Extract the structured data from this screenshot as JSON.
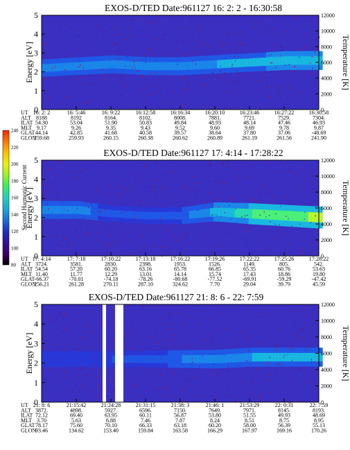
{
  "colorbar": {
    "label": "Second Harmonic Current",
    "ticks": [
      "80",
      "100",
      "120",
      "140",
      "160",
      "180",
      "200",
      "220",
      "240"
    ],
    "colors": [
      "#000000",
      "#3a006a",
      "#3010a0",
      "#2030c8",
      "#1a6ee0",
      "#19a8d8",
      "#26d0b8",
      "#33ee60",
      "#9cf22a",
      "#e8f20c",
      "#ffc000",
      "#ff7800",
      "#ff2200"
    ]
  },
  "chart_data": [
    {
      "type": "heatmap",
      "title": "EXOS-D/TED   Date:961127  16: 2: 2 - 16:30:58",
      "ylabel": "Energy [eV]",
      "ylabel_right": "Temperature [K]",
      "ylim": [
        0,
        5
      ],
      "y_ticks": [
        "0",
        "1",
        "2",
        "3",
        "4",
        "5"
      ],
      "y2lim": [
        0,
        12000
      ],
      "y2_ticks": [
        "0",
        "2000",
        "4000",
        "6000",
        "8000",
        "10000",
        "12000"
      ],
      "ephemeris_labels": [
        "UT",
        "ALT",
        "ILAT",
        "MLT",
        "GLAT",
        "GLON"
      ],
      "ephemeris": [
        [
          "16: 2: 2",
          "8188",
          "54.30",
          "9.17",
          "44.14",
          "259.68"
        ],
        [
          "16: 5:46",
          "8192",
          "53.04",
          "9.26",
          "42.85",
          "259.93"
        ],
        [
          "16: 9:22",
          "8164.",
          "51.90",
          "9.35",
          "41.68",
          "260.15"
        ],
        [
          "16:12:58",
          "8102.",
          "50.83",
          "9.43",
          "40.58",
          "260.38"
        ],
        [
          "16:16:34",
          "8008.",
          "49.84",
          "9.52",
          "39.57",
          "260.62"
        ],
        [
          "16:20:10",
          "7881.",
          "48.93",
          "9.60",
          "38.64",
          "260.89"
        ],
        [
          "16:23:46",
          "7721.",
          "48.14",
          "9.69",
          "37.80",
          "261.19"
        ],
        [
          "16:27:22",
          "7529.",
          "47.46",
          "9.78",
          "37.06",
          "261.56"
        ],
        [
          "16:30:58",
          "7304.",
          "46.93",
          "9.87",
          "-48.69",
          "241.90"
        ]
      ],
      "band": {
        "center_ev": [
          2.2,
          2.3,
          2.4,
          2.3,
          2.3,
          2.4,
          2.5,
          2.6,
          2.6
        ],
        "intensity": [
          0.45,
          0.45,
          0.5,
          0.5,
          0.5,
          0.55,
          0.55,
          0.6,
          0.6
        ]
      }
    },
    {
      "type": "heatmap",
      "title": "EXOS-D/TED   Date:961127  17: 4:14 - 17:28:22",
      "ylabel": "Energy [eV]",
      "ylabel_right": "Temperature [K]",
      "ylim": [
        0,
        5
      ],
      "y_ticks": [
        "0",
        "1",
        "2",
        "3",
        "4",
        "5"
      ],
      "y2lim": [
        0,
        12000
      ],
      "y2_ticks": [
        "0",
        "2000",
        "4000",
        "6000",
        "8000",
        "10000",
        "12000"
      ],
      "ephemeris_labels": [
        "UT",
        "ALT",
        "ILAT",
        "MLT",
        "GLAT",
        "GLON"
      ],
      "ephemeris": [
        [
          "17: 4:14",
          "3724.",
          "54.54",
          "11.40",
          "-66.37",
          "256.21"
        ],
        [
          "17: 7:18",
          "3581.",
          "57.20",
          "11.77",
          "-70.01",
          "261.28"
        ],
        [
          "17:10:22",
          "2830.",
          "60.20",
          "12.29",
          "-74.18",
          "270.11"
        ],
        [
          "17:13:18",
          "2398.",
          "63.16",
          "13.01",
          "-78.26",
          "287.10"
        ],
        [
          "17:16:22",
          "1953.",
          "65.78",
          "14.14",
          "-80.68",
          "324.62"
        ],
        [
          "17:19:26",
          "1526.",
          "66.85",
          "15.74",
          "-77.52",
          "7.70"
        ],
        [
          "17:22:22",
          "1149.",
          "65.35",
          "17.43",
          "-69.91",
          "29.04"
        ],
        [
          "17:25:26",
          "805.",
          "60.76",
          "18.86",
          "-59.29",
          "39.79"
        ],
        [
          "17:28:22",
          "542.",
          "53.63",
          "19.80",
          "-47.42",
          "45.59"
        ]
      ],
      "band": {
        "center_ev": [
          2.4,
          2.4,
          2.2,
          2.1,
          2.1,
          2.3,
          2.2,
          2.1,
          2.0
        ],
        "intensity": [
          0.5,
          0.45,
          0.3,
          0.3,
          0.35,
          0.6,
          0.8,
          0.85,
          0.9
        ]
      }
    },
    {
      "type": "heatmap",
      "title": "EXOS-D/TED   Date:961127  21: 8: 6 - 22: 7:59",
      "ylabel": "Energy [eV]",
      "ylabel_right": "Temperature [K]",
      "ylim": [
        0,
        5
      ],
      "y_ticks": [
        "0",
        "1",
        "2",
        "3",
        "4",
        "5"
      ],
      "y2lim": [
        0,
        12000
      ],
      "y2_ticks": [
        "0",
        "2000",
        "4000",
        "6000",
        "8000",
        "10000",
        "12000"
      ],
      "ephemeris_labels": [
        "UT",
        "ALT",
        "ILAT",
        "MLT",
        "GLAT",
        "GLON"
      ],
      "ephemeris": [
        [
          "21: 8: 6",
          "3872.",
          "72.12",
          "3.70",
          "78.17",
          "93.46"
        ],
        [
          "21:15:42",
          "4898.",
          "69.40",
          "5.63",
          "75.60",
          "134.62"
        ],
        [
          "21:24:28",
          "5927.",
          "63.95",
          "6.88",
          "70.10",
          "153.40"
        ],
        [
          "21:31:15",
          "6596.",
          "60.11",
          "7.46",
          "66.33",
          "159.84"
        ],
        [
          "21:38: 3",
          "7150.",
          "56.87",
          "7.87",
          "63.18",
          "163.58"
        ],
        [
          "21:46: 1",
          "7649.",
          "53.80",
          "8.24",
          "60.20",
          "166.29"
        ],
        [
          "21:53:29",
          "7971.",
          "51.55",
          "8.51",
          "58.00",
          "167.97"
        ],
        [
          "22: 0:31",
          "8145.",
          "49.93",
          "8.75",
          "56.39",
          "169.16"
        ],
        [
          "22: 7:59",
          "8193.",
          "48.69",
          "8.95",
          "55.13",
          "170.26"
        ]
      ],
      "data_gaps_ut": [
        [
          "21:20",
          "21:21"
        ],
        [
          "21:22",
          "21:24"
        ]
      ],
      "band": {
        "center_ev": [
          2.2,
          2.2,
          2.2,
          2.2,
          2.2,
          2.2,
          2.3,
          2.3,
          2.3
        ],
        "intensity": [
          0.2,
          0.2,
          0.25,
          0.3,
          0.4,
          0.5,
          0.55,
          0.55,
          0.55
        ]
      }
    }
  ]
}
